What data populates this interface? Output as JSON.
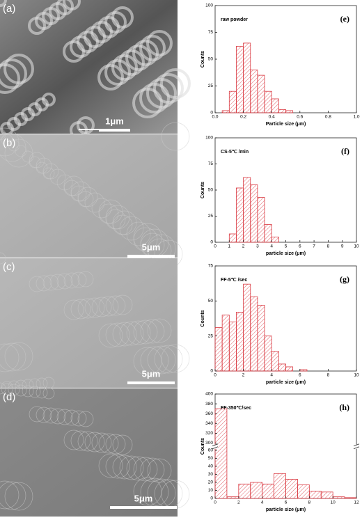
{
  "panels": [
    {
      "label": "(a)",
      "scale": "1μm"
    },
    {
      "label": "(b)",
      "scale": "5μm"
    },
    {
      "label": "(c)",
      "scale": "5μm"
    },
    {
      "label": "(d)",
      "scale": "5μm"
    }
  ],
  "chart_data": [
    {
      "type": "histogram",
      "title": "raw powder",
      "tag": "(e)",
      "xlabel": "Particle size (μm)",
      "ylabel": "Counts",
      "color": "#d9363e",
      "bins": [
        0.05,
        0.1,
        0.15,
        0.2,
        0.25,
        0.3,
        0.35,
        0.4,
        0.45,
        0.5,
        0.55
      ],
      "values": [
        2,
        20,
        62,
        65,
        40,
        35,
        20,
        13,
        3,
        2
      ],
      "xlim": [
        0,
        1
      ],
      "xticks": [
        {
          "value": 0,
          "label": "0.0"
        },
        0.2,
        0.4,
        0.6,
        0.8,
        {
          "value": 1,
          "label": "1.0"
        }
      ],
      "ylim": [
        0,
        100
      ],
      "yticks": [
        0,
        25,
        50,
        75,
        100
      ]
    },
    {
      "type": "histogram",
      "title": "CS-5℃ /min",
      "tag": "(f)",
      "xlabel": "particle size (μm)",
      "ylabel": "Counts",
      "color": "#d9363e",
      "bins": [
        1,
        1.5,
        2,
        2.5,
        3,
        3.5,
        4,
        4.5
      ],
      "values": [
        8,
        52,
        62,
        55,
        43,
        17,
        5
      ],
      "xlim": [
        0,
        10
      ],
      "xticks": [
        0,
        1,
        2,
        3,
        4,
        5,
        6,
        7,
        8,
        9,
        10
      ],
      "ylim": [
        0,
        100
      ],
      "yticks": [
        0,
        25,
        50,
        75,
        100
      ]
    },
    {
      "type": "histogram",
      "title": "FF-5℃ /sec",
      "tag": "(g)",
      "xlabel": "particle size (μm)",
      "ylabel": "Counts",
      "color": "#d9363e",
      "bins": [
        0,
        0.5,
        1,
        1.5,
        2,
        2.5,
        3,
        3.5,
        4,
        4.5,
        5,
        5.5,
        6,
        6.5
      ],
      "values": [
        31,
        40,
        35,
        42,
        62,
        53,
        47,
        25,
        14,
        5,
        3,
        0,
        1
      ],
      "xlim": [
        0,
        10
      ],
      "xticks": [
        0,
        2,
        4,
        6,
        8,
        10
      ],
      "ylim": [
        0,
        75
      ],
      "yticks": [
        0,
        25,
        50,
        75
      ]
    },
    {
      "type": "histogram",
      "title": "FF-350℃/sec",
      "tag": "(h)",
      "xlabel": "particle size (μm)",
      "ylabel": "Counts",
      "color": "#d9363e",
      "bins": [
        0,
        1,
        2,
        3,
        4,
        5,
        6,
        7,
        8,
        9,
        10,
        11,
        12
      ],
      "values": [
        370,
        2,
        18,
        20,
        18,
        31,
        24,
        17,
        9,
        8,
        2,
        1
      ],
      "xlim": [
        0,
        12
      ],
      "xticks": [
        0,
        2,
        4,
        6,
        8,
        10,
        12
      ],
      "ylim": [
        0,
        400
      ],
      "y_break": [
        60,
        300
      ],
      "yticks": [
        0,
        10,
        20,
        30,
        40,
        50,
        60,
        300,
        320,
        340,
        360,
        380,
        400
      ]
    }
  ]
}
